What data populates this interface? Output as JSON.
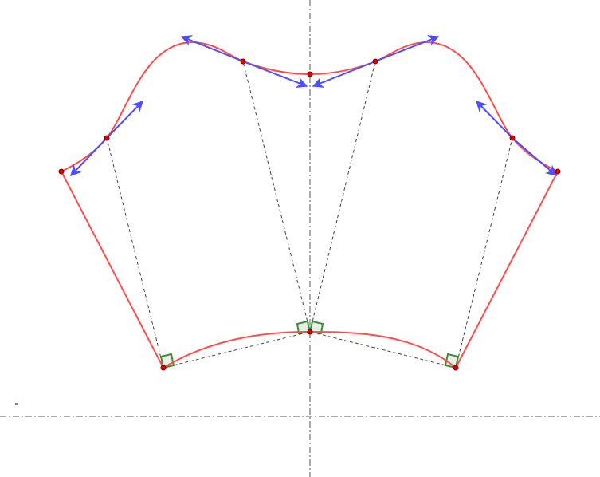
{
  "diagram": {
    "colors": {
      "curve": "#ff4d4d",
      "point_fill": "#e00000",
      "point_stroke": "#800000",
      "vector": "#4d4dff",
      "construction": "#444444",
      "axis": "#555555",
      "right_angle_stroke": "#3c8c3c",
      "right_angle_fill": "#e6efe6"
    },
    "symmetric_about_vertical_axis": true,
    "point_count": 10,
    "tangent_vector_count": 8,
    "right_angle_markers": 4
  }
}
